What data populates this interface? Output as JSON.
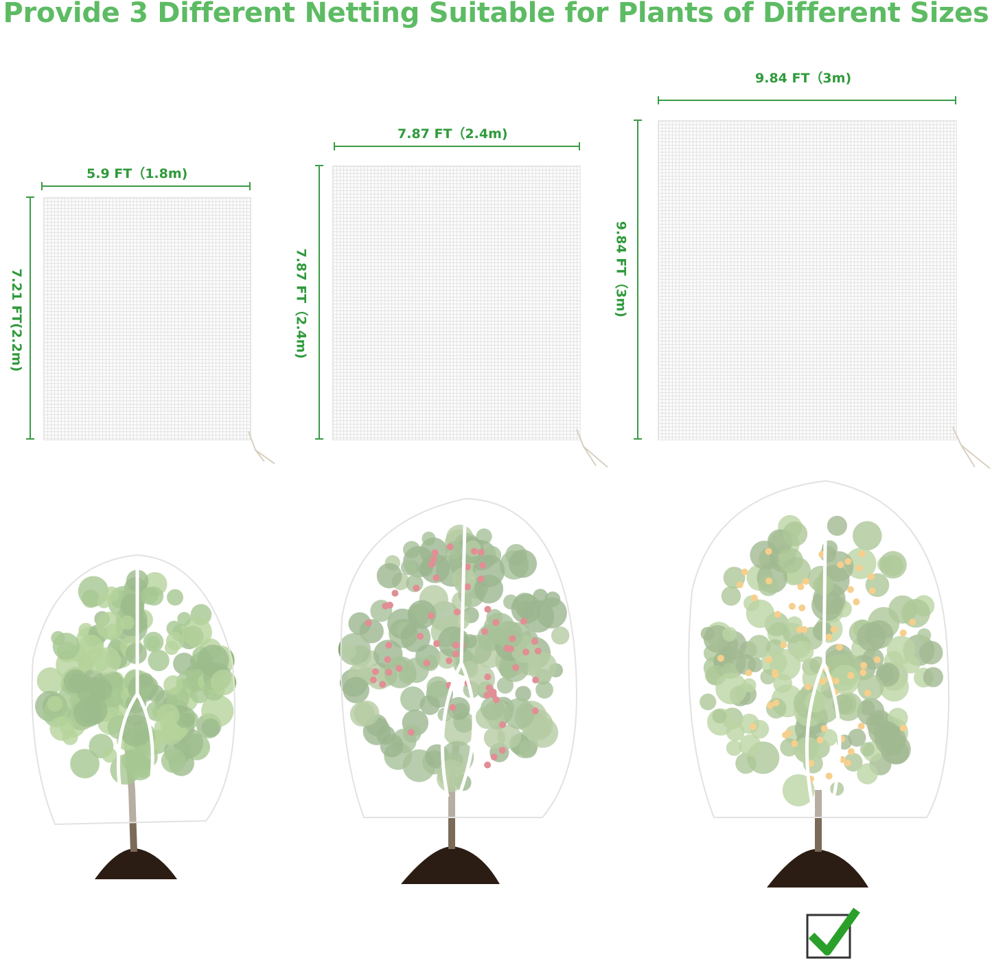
{
  "title": "Provide 3 Different Netting Suitable for Plants of Different Sizes",
  "nettings": [
    {
      "width_label": "5.9 FT（1.8m)",
      "height_label": "7.21 FT(2.2m)",
      "fruit": "none"
    },
    {
      "width_label": "7.87 FT（2.4m)",
      "height_label": "7.87 FT（2.4m)",
      "fruit": "red apples"
    },
    {
      "width_label": "9.84 FT（3m)",
      "height_label": "9.84 FT（3m)",
      "fruit": "oranges"
    }
  ],
  "colors": {
    "title": "#5dbb63",
    "dimension": "#2f9a3b",
    "check": "#2aa02a"
  },
  "icons": {
    "selected": "checkmark-box-icon"
  }
}
